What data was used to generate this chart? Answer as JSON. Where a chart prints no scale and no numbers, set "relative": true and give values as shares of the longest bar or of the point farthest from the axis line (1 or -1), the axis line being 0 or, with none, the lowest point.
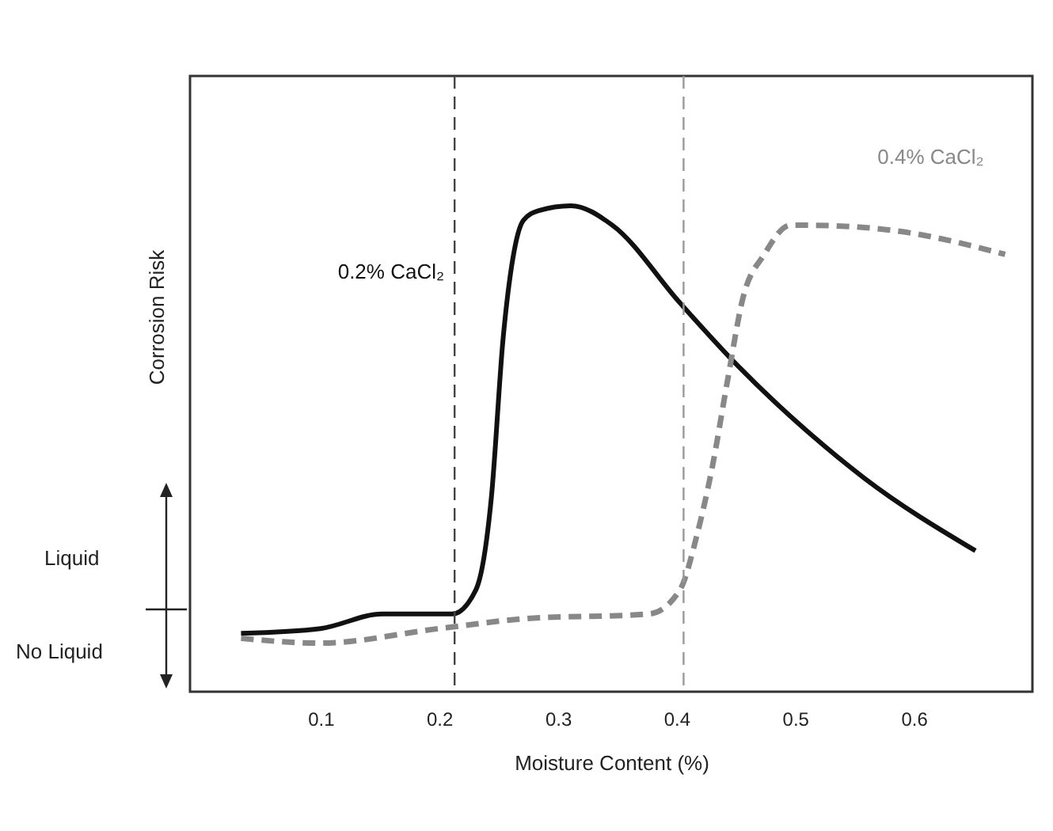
{
  "chart_data": {
    "type": "line",
    "relative": true,
    "xlabel": "Moisture Content (%)",
    "ylabel": "Corrosion Risk",
    "xlim": [
      -0.01,
      0.7
    ],
    "xticks": [
      0.1,
      0.2,
      0.3,
      0.4,
      0.5,
      0.6
    ],
    "grid": false,
    "tick_labels": "x",
    "series": [
      {
        "name": "0.2% CaCl₂",
        "color": "#111111",
        "line_style": "solid",
        "x": [
          0.033,
          0.1,
          0.152,
          0.211,
          0.231,
          0.244,
          0.254,
          0.262,
          0.271,
          0.284,
          0.311,
          0.346,
          0.403,
          0.452,
          0.513,
          0.558,
          0.652
        ],
        "values": [
          0.12,
          0.13,
          0.16,
          0.16,
          0.21,
          0.4,
          0.73,
          0.89,
          0.97,
          0.99,
          1,
          0.96,
          0.8,
          0.67,
          0.53,
          0.44,
          0.29
        ]
      },
      {
        "name": "0.4% CaCl₂",
        "color": "#888888",
        "line_style": "dashed",
        "x": [
          0.033,
          0.099,
          0.2,
          0.271,
          0.377,
          0.403,
          0.417,
          0.43,
          0.443,
          0.456,
          0.474,
          0.496,
          0.509,
          0.58,
          0.677
        ],
        "values": [
          0.11,
          0.1,
          0.13,
          0.15,
          0.16,
          0.21,
          0.32,
          0.46,
          0.64,
          0.81,
          0.9,
          0.96,
          0.96,
          0.95,
          0.9
        ]
      }
    ],
    "ref_lines": [
      {
        "axis": "x",
        "value": 0.213,
        "color": "#444444",
        "line_style": "dashed"
      },
      {
        "axis": "x",
        "value": 0.406,
        "color": "#999999",
        "line_style": "dashed"
      }
    ],
    "annotations": [
      "Liquid",
      "No Liquid"
    ]
  }
}
